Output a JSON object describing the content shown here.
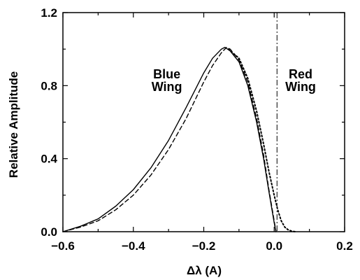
{
  "chart_data": {
    "type": "line",
    "xlabel": "Δλ (A)",
    "ylabel": "Relative Amplitude",
    "xlim": [
      -0.6,
      0.2
    ],
    "ylim": [
      0.0,
      1.2
    ],
    "xticks": [
      -0.6,
      -0.4,
      -0.2,
      0.0,
      0.2
    ],
    "xtick_labels": [
      "−0.6",
      "−0.4",
      "−0.2",
      "0.0",
      "0.2"
    ],
    "yticks": [
      0.0,
      0.4,
      0.8,
      1.2
    ],
    "ytick_labels": [
      "0.0",
      "0.4",
      "0.8",
      "1.2"
    ],
    "grid": false,
    "series": [
      {
        "style": "solid",
        "x": [
          -0.6,
          -0.55,
          -0.5,
          -0.45,
          -0.4,
          -0.35,
          -0.3,
          -0.25,
          -0.2,
          -0.175,
          -0.15,
          -0.14,
          -0.125,
          -0.1,
          -0.075,
          -0.05,
          -0.03,
          -0.015,
          0.0,
          0.005
        ],
        "y": [
          0.0,
          0.03,
          0.07,
          0.14,
          0.23,
          0.35,
          0.5,
          0.68,
          0.87,
          0.95,
          1.0,
          1.01,
          0.99,
          0.93,
          0.8,
          0.6,
          0.4,
          0.22,
          0.05,
          0.0
        ]
      },
      {
        "style": "dashed",
        "x": [
          -0.6,
          -0.55,
          -0.5,
          -0.45,
          -0.4,
          -0.35,
          -0.3,
          -0.25,
          -0.2,
          -0.175,
          -0.15,
          -0.135,
          -0.125,
          -0.1,
          -0.075,
          -0.05,
          -0.03,
          -0.015,
          0.0,
          0.005
        ],
        "y": [
          0.0,
          0.025,
          0.06,
          0.12,
          0.2,
          0.31,
          0.45,
          0.62,
          0.82,
          0.91,
          0.98,
          1.01,
          1.0,
          0.94,
          0.82,
          0.62,
          0.42,
          0.23,
          0.06,
          0.0
        ]
      },
      {
        "style": "dotted",
        "x": [
          -0.13,
          -0.1,
          -0.075,
          -0.05,
          -0.03,
          -0.015,
          0.0,
          0.01,
          0.02,
          0.03,
          0.04,
          0.05,
          0.06
        ],
        "y": [
          1.0,
          0.95,
          0.84,
          0.66,
          0.48,
          0.33,
          0.2,
          0.12,
          0.06,
          0.025,
          0.01,
          0.003,
          0.0
        ]
      }
    ],
    "vline": {
      "x": 0.008,
      "style": "dash-dot"
    },
    "annotations": [
      {
        "text": "Blue",
        "x": -0.305,
        "y": 0.84
      },
      {
        "text": "Wing",
        "x": -0.305,
        "y": 0.77
      },
      {
        "text": "Red",
        "x": 0.075,
        "y": 0.84
      },
      {
        "text": "Wing",
        "x": 0.075,
        "y": 0.77
      }
    ]
  }
}
